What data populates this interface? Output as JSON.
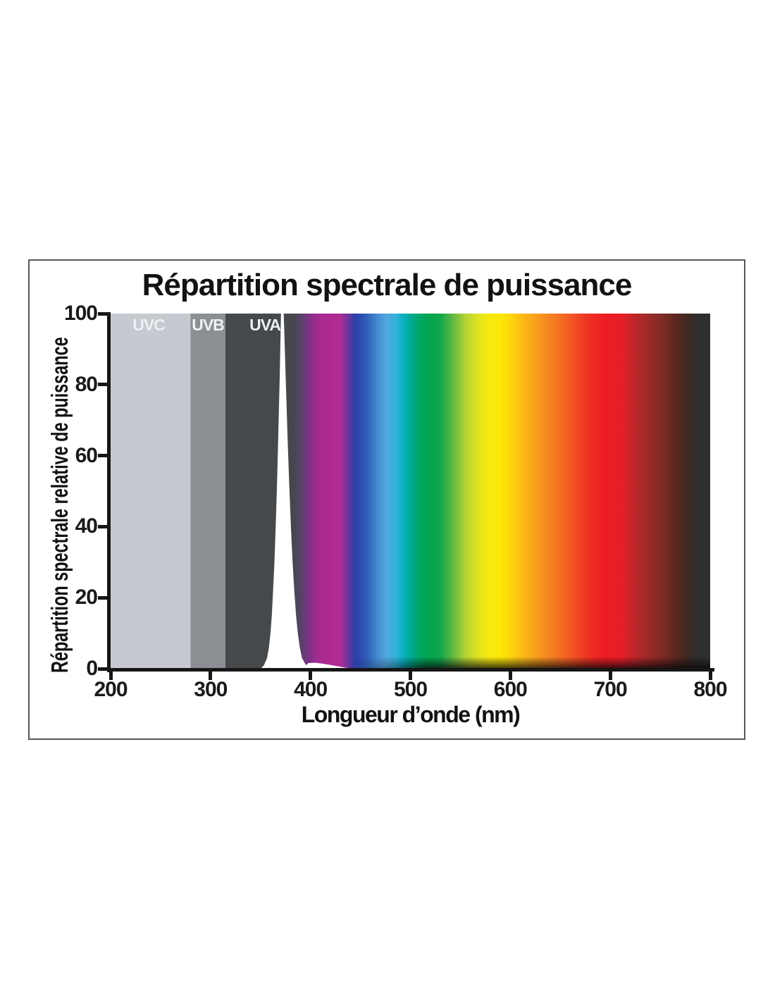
{
  "chart_data": {
    "type": "area",
    "title": "Répartition spectrale de puissance",
    "xlabel": "Longueur d’onde (nm)",
    "ylabel": "Répartition spectrale relative de puissance",
    "xlim": [
      200,
      800
    ],
    "ylim": [
      0,
      100
    ],
    "x_ticks": [
      200,
      300,
      400,
      500,
      600,
      700,
      800
    ],
    "y_ticks": [
      0,
      20,
      40,
      60,
      80,
      100
    ],
    "grid": "off",
    "legend": "none",
    "axis_color": "#161616",
    "bands": [
      {
        "label": "UVC",
        "from_nm": 200,
        "to_nm": 280,
        "color": "#c6c9d0"
      },
      {
        "label": "UVB",
        "from_nm": 280,
        "to_nm": 315,
        "color": "#8b8f94"
      },
      {
        "label": "UVA",
        "from_nm": 315,
        "to_nm": 400,
        "color": "#45494c"
      }
    ],
    "peak": {
      "center_nm": 371.5,
      "height_pct": 100,
      "profile": [
        [
          0,
          350.0,
          400.0
        ],
        [
          1,
          353.5,
          395.5
        ],
        [
          3,
          356.5,
          391.5
        ],
        [
          6,
          358.4,
          389.3
        ],
        [
          10,
          360.0,
          387.3
        ],
        [
          15,
          361.3,
          385.6
        ],
        [
          22,
          362.6,
          383.8
        ],
        [
          30,
          363.9,
          382.1
        ],
        [
          40,
          365.2,
          380.4
        ],
        [
          52,
          366.5,
          378.7
        ],
        [
          66,
          367.8,
          377.0
        ],
        [
          82,
          369.2,
          375.2
        ],
        [
          100,
          370.5,
          373.2
        ]
      ],
      "base_sliver": [
        [
          398,
          8
        ],
        [
          405,
          8.5
        ],
        [
          413,
          7
        ],
        [
          425,
          4
        ],
        [
          437,
          1
        ],
        [
          448,
          0
        ]
      ]
    },
    "spectrum_stops": [
      [
        371.5,
        "#45494c"
      ],
      [
        382,
        "#45474b"
      ],
      [
        390,
        "#554367"
      ],
      [
        398,
        "#7c3384"
      ],
      [
        406,
        "#9c2c8e"
      ],
      [
        412,
        "#ac2a92"
      ],
      [
        429,
        "#b12b94"
      ],
      [
        436,
        "#80319b"
      ],
      [
        444,
        "#323ea7"
      ],
      [
        448,
        "#2c46ae"
      ],
      [
        457,
        "#3360b9"
      ],
      [
        466,
        "#4287cf"
      ],
      [
        476,
        "#52a7e0"
      ],
      [
        486,
        "#2fb2d8"
      ],
      [
        493,
        "#0aafc2"
      ],
      [
        500,
        "#00ab97"
      ],
      [
        508,
        "#01a76b"
      ],
      [
        517,
        "#00a550"
      ],
      [
        530,
        "#11a74c"
      ],
      [
        543,
        "#63ba44"
      ],
      [
        555,
        "#b2d235"
      ],
      [
        567,
        "#dce221"
      ],
      [
        578,
        "#f5e910"
      ],
      [
        590,
        "#fde806"
      ],
      [
        600,
        "#fdd60b"
      ],
      [
        610,
        "#fcc013"
      ],
      [
        627,
        "#f89c1e"
      ],
      [
        647,
        "#f47522"
      ],
      [
        662,
        "#f25424"
      ],
      [
        678,
        "#ee3123"
      ],
      [
        694,
        "#ed1d24"
      ],
      [
        712,
        "#e61e26"
      ],
      [
        722,
        "#c62329"
      ],
      [
        736,
        "#a02b28"
      ],
      [
        752,
        "#802a24"
      ],
      [
        766,
        "#5c2720"
      ],
      [
        780,
        "#3a2a25"
      ],
      [
        790,
        "#2f2f30"
      ],
      [
        800,
        "#2e3133"
      ]
    ]
  }
}
